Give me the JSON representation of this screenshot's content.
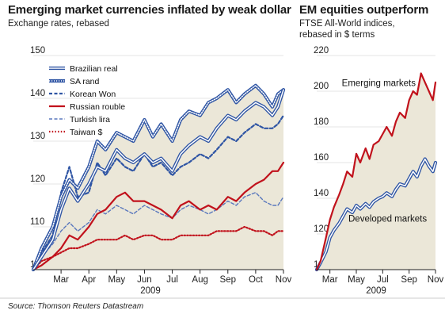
{
  "left": {
    "title": "Emerging market currencies inflated by weak dollar",
    "subtitle": "Exchange rates, rebased"
  },
  "right": {
    "title": "EM equities outperform",
    "subtitle_line1": "FTSE All-World indices,",
    "subtitle_line2": "rebased in $ terms"
  },
  "source": "Source: Thomson Reuters Datastream",
  "colors": {
    "background_fill": "#ebe7d8",
    "blue": "#2f55a4",
    "red": "#c1121c",
    "axis": "#222222"
  },
  "chart_data": [
    {
      "type": "line",
      "year_label": "2009",
      "ylim": [
        100,
        150
      ],
      "yticks": [
        100,
        110,
        120,
        130,
        140,
        150
      ],
      "xlim": [
        0,
        9
      ],
      "xticks": [
        {
          "label": "Mar",
          "x": 1
        },
        {
          "label": "Apr",
          "x": 2
        },
        {
          "label": "May",
          "x": 3
        },
        {
          "label": "Jun",
          "x": 4
        },
        {
          "label": "Jul",
          "x": 5
        },
        {
          "label": "Aug",
          "x": 6
        },
        {
          "label": "Sep",
          "x": 7
        },
        {
          "label": "Oct",
          "x": 8
        },
        {
          "label": "Nov",
          "x": 9
        }
      ],
      "series": [
        {
          "name": "Brazilian real",
          "style": "double-blue",
          "x": [
            0,
            0.3,
            0.7,
            1,
            1.3,
            1.6,
            2,
            2.3,
            2.6,
            3,
            3.3,
            3.6,
            4,
            4.3,
            4.6,
            5,
            5.3,
            5.6,
            6,
            6.3,
            6.6,
            7,
            7.3,
            7.6,
            8,
            8.3,
            8.6,
            8.8,
            9
          ],
          "y": [
            100,
            103,
            107,
            114,
            119,
            116,
            120,
            124,
            123,
            128,
            126,
            125,
            127,
            125,
            126,
            123,
            127,
            129,
            131,
            130,
            133,
            136,
            135,
            137,
            139,
            138,
            136,
            138,
            142
          ]
        },
        {
          "name": "SA rand",
          "style": "double-blue-dotted",
          "x": [
            0,
            0.3,
            0.7,
            1,
            1.3,
            1.6,
            2,
            2.3,
            2.6,
            3,
            3.3,
            3.6,
            4,
            4.3,
            4.6,
            5,
            5.3,
            5.6,
            6,
            6.3,
            6.6,
            7,
            7.3,
            7.6,
            8,
            8.3,
            8.6,
            8.8,
            9
          ],
          "y": [
            100,
            105,
            110,
            117,
            121,
            119,
            124,
            130,
            128,
            132,
            131,
            130,
            135,
            131,
            134,
            130,
            135,
            137,
            136,
            139,
            140,
            142,
            139,
            141,
            143,
            141,
            138,
            141,
            142
          ]
        },
        {
          "name": "Korean Won",
          "style": "dashed-blue",
          "x": [
            0,
            0.3,
            0.7,
            1,
            1.3,
            1.6,
            2,
            2.3,
            2.6,
            3,
            3.3,
            3.6,
            4,
            4.3,
            4.6,
            5,
            5.3,
            5.6,
            6,
            6.3,
            6.6,
            7,
            7.3,
            7.6,
            8,
            8.3,
            8.6,
            8.8,
            9
          ],
          "y": [
            100,
            104,
            108,
            118,
            124,
            117,
            118,
            125,
            122,
            126,
            124,
            123,
            127,
            124,
            125,
            122,
            124,
            125,
            127,
            126,
            128,
            131,
            130,
            132,
            134,
            133,
            133,
            134,
            136
          ]
        },
        {
          "name": "Russian rouble",
          "style": "solid-red",
          "x": [
            0,
            0.3,
            0.7,
            1,
            1.3,
            1.6,
            2,
            2.3,
            2.6,
            3,
            3.3,
            3.6,
            4,
            4.3,
            4.6,
            5,
            5.3,
            5.6,
            6,
            6.3,
            6.6,
            7,
            7.3,
            7.6,
            8,
            8.3,
            8.6,
            8.8,
            9
          ],
          "y": [
            100,
            101,
            103,
            105,
            108,
            107,
            110,
            113,
            114,
            117,
            118,
            116,
            116,
            115,
            114,
            112,
            115,
            116,
            114,
            115,
            114,
            117,
            116,
            118,
            120,
            121,
            123,
            123,
            125
          ]
        },
        {
          "name": "Turkish lira",
          "style": "dashed-blue-thin",
          "x": [
            0,
            0.3,
            0.7,
            1,
            1.3,
            1.6,
            2,
            2.3,
            2.6,
            3,
            3.3,
            3.6,
            4,
            4.3,
            4.6,
            5,
            5.3,
            5.6,
            6,
            6.3,
            6.6,
            7,
            7.3,
            7.6,
            8,
            8.3,
            8.6,
            8.8,
            9
          ],
          "y": [
            100,
            103,
            106,
            109,
            111,
            109,
            111,
            114,
            113,
            115,
            114,
            113,
            115,
            114,
            113,
            112,
            114,
            115,
            114,
            113,
            114,
            116,
            115,
            117,
            118,
            116,
            115,
            115,
            117
          ]
        },
        {
          "name": "Taiwan $",
          "style": "dotted-red",
          "x": [
            0,
            0.3,
            0.7,
            1,
            1.3,
            1.6,
            2,
            2.3,
            2.6,
            3,
            3.3,
            3.6,
            4,
            4.3,
            4.6,
            5,
            5.3,
            5.6,
            6,
            6.3,
            6.6,
            7,
            7.3,
            7.6,
            8,
            8.3,
            8.6,
            8.8,
            9
          ],
          "y": [
            100,
            102,
            103,
            104,
            105,
            105,
            106,
            107,
            107,
            107,
            108,
            107,
            108,
            108,
            107,
            107,
            108,
            108,
            108,
            108,
            109,
            109,
            109,
            110,
            109,
            109,
            108,
            109,
            109
          ]
        }
      ]
    },
    {
      "type": "line",
      "year_label": "2009",
      "ylim": [
        100,
        220
      ],
      "yticks": [
        100,
        120,
        140,
        160,
        180,
        200,
        220
      ],
      "xlim": [
        0,
        9
      ],
      "xticks": [
        {
          "label": "Mar",
          "x": 1
        },
        {
          "label": "May",
          "x": 3
        },
        {
          "label": "Jul",
          "x": 5
        },
        {
          "label": "Sep",
          "x": 7
        },
        {
          "label": "Nov",
          "x": 9
        }
      ],
      "annotations": [
        {
          "text": "Emerging markets",
          "series": "em"
        },
        {
          "text": "Developed markets",
          "series": "dm"
        }
      ],
      "series": [
        {
          "name": "Emerging markets",
          "key": "em",
          "style": "solid-red",
          "x": [
            0,
            0.3,
            0.7,
            1,
            1.3,
            1.7,
            2,
            2.3,
            2.7,
            3,
            3.3,
            3.7,
            4,
            4.3,
            4.7,
            5,
            5.3,
            5.7,
            6,
            6.3,
            6.7,
            7,
            7.3,
            7.6,
            7.9,
            8.2,
            8.5,
            8.8,
            9
          ],
          "y": [
            100,
            105,
            118,
            128,
            135,
            142,
            148,
            155,
            152,
            165,
            160,
            168,
            162,
            170,
            172,
            176,
            180,
            175,
            183,
            188,
            185,
            195,
            200,
            198,
            210,
            205,
            200,
            195,
            205
          ]
        },
        {
          "name": "Developed markets",
          "key": "dm",
          "style": "double-blue",
          "x": [
            0,
            0.3,
            0.7,
            1,
            1.3,
            1.7,
            2,
            2.3,
            2.7,
            3,
            3.3,
            3.7,
            4,
            4.3,
            4.7,
            5,
            5.3,
            5.7,
            6,
            6.3,
            6.7,
            7,
            7.3,
            7.6,
            7.9,
            8.2,
            8.5,
            8.8,
            9
          ],
          "y": [
            100,
            104,
            110,
            118,
            122,
            126,
            130,
            134,
            132,
            136,
            134,
            137,
            135,
            138,
            140,
            141,
            143,
            141,
            145,
            148,
            147,
            151,
            155,
            152,
            158,
            162,
            158,
            155,
            160
          ]
        }
      ]
    }
  ]
}
